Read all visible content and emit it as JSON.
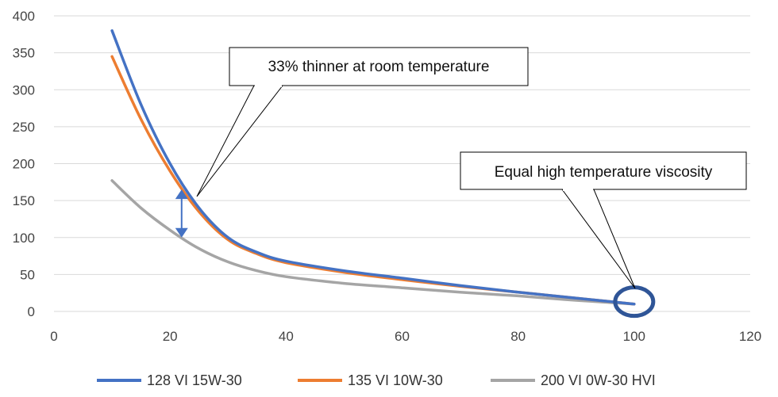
{
  "chart_data": {
    "type": "line",
    "title": "",
    "xlabel": "",
    "ylabel": "",
    "xlim": [
      0,
      120
    ],
    "ylim": [
      0,
      400
    ],
    "x_ticks": [
      0,
      20,
      40,
      60,
      80,
      100,
      120
    ],
    "y_ticks": [
      0,
      50,
      100,
      150,
      200,
      250,
      300,
      350,
      400
    ],
    "x_tick_labels": [
      "0",
      "20",
      "40",
      "60",
      "80",
      "100",
      "120"
    ],
    "y_tick_labels": [
      "0",
      "50",
      "100",
      "150",
      "200",
      "250",
      "300",
      "350",
      "400"
    ],
    "grid": "horizontal",
    "legend_position": "bottom",
    "series": [
      {
        "name": "128 VI 15W-30",
        "color": "#4472C4",
        "x": [
          10,
          15,
          20,
          25,
          30,
          35,
          40,
          50,
          60,
          70,
          80,
          90,
          100
        ],
        "y": [
          380,
          280,
          200,
          140,
          100,
          80,
          68,
          55,
          45,
          35,
          26,
          18,
          10
        ]
      },
      {
        "name": "135 VI 10W-30",
        "color": "#ED7D31",
        "x": [
          10,
          15,
          20,
          25,
          30,
          35,
          40,
          50,
          60,
          70,
          80,
          90,
          100
        ],
        "y": [
          345,
          260,
          190,
          135,
          97,
          78,
          66,
          53,
          43,
          34,
          26,
          18,
          10
        ]
      },
      {
        "name": "200 VI 0W-30 HVI",
        "color": "#A5A5A5",
        "x": [
          10,
          15,
          20,
          25,
          30,
          35,
          40,
          50,
          60,
          70,
          80,
          90,
          100
        ],
        "y": [
          177,
          140,
          110,
          85,
          67,
          55,
          47,
          38,
          32,
          26,
          21,
          15,
          10
        ]
      }
    ],
    "annotations": [
      {
        "text": "33% thinner at room temperature",
        "target": [
          23,
          160
        ]
      },
      {
        "text": "Equal high temperature viscosity",
        "target": [
          100,
          10
        ]
      }
    ],
    "range_arrow": {
      "x": 22,
      "y_from": 100,
      "y_to": 165,
      "color": "#4472C4"
    },
    "highlight_ring": {
      "x": 100,
      "y": 10,
      "color": "#2F5597"
    }
  }
}
